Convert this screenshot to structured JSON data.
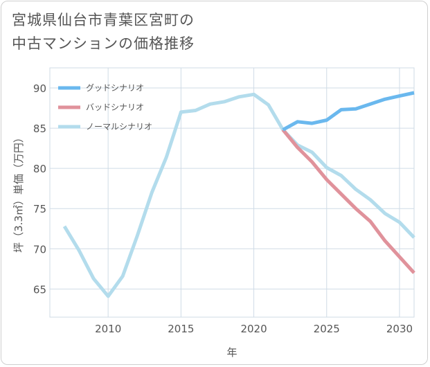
{
  "title_lines": [
    "宮城県仙台市青葉区宮町の",
    "中古マンションの価格推移"
  ],
  "chart_data": {
    "type": "line",
    "xlabel": "年",
    "ylabel": "坪（3.3㎡）単価（万円）",
    "xlim": [
      2006,
      2031
    ],
    "ylim": [
      61.5,
      92.5
    ],
    "x_ticks": [
      2010,
      2015,
      2020,
      2025,
      2030
    ],
    "y_ticks": [
      65,
      70,
      75,
      80,
      85,
      90
    ],
    "grid": true,
    "legend_position": "top-left",
    "series": [
      {
        "name": "ノーマルシナリオ",
        "color": "#b3dcec",
        "x": [
          2007,
          2008,
          2009,
          2010,
          2011,
          2012,
          2013,
          2014,
          2015,
          2016,
          2017,
          2018,
          2019,
          2020,
          2021,
          2022,
          2023,
          2024,
          2025,
          2026,
          2027,
          2028,
          2029,
          2030,
          2031
        ],
        "values": [
          72.8,
          69.8,
          66.3,
          64.1,
          66.6,
          71.6,
          77.0,
          81.4,
          87.0,
          87.2,
          88.0,
          88.3,
          88.9,
          89.2,
          87.9,
          84.8,
          82.9,
          82.0,
          80.1,
          79.1,
          77.4,
          76.1,
          74.4,
          73.3,
          71.4
        ]
      },
      {
        "name": "バッドシナリオ",
        "color": "#e0929b",
        "x": [
          2022,
          2023,
          2024,
          2025,
          2026,
          2027,
          2028,
          2029,
          2030,
          2031
        ],
        "values": [
          84.8,
          82.6,
          80.8,
          78.6,
          76.8,
          75.0,
          73.4,
          71.0,
          69.0,
          67.0
        ]
      },
      {
        "name": "グッドシナリオ",
        "color": "#6ab8ee",
        "x": [
          2022,
          2023,
          2024,
          2025,
          2026,
          2027,
          2028,
          2029,
          2030,
          2031
        ],
        "values": [
          84.8,
          85.8,
          85.6,
          86.0,
          87.3,
          87.4,
          88.0,
          88.6,
          89.0,
          89.4
        ]
      }
    ],
    "legend_order": [
      "グッドシナリオ",
      "バッドシナリオ",
      "ノーマルシナリオ"
    ]
  }
}
